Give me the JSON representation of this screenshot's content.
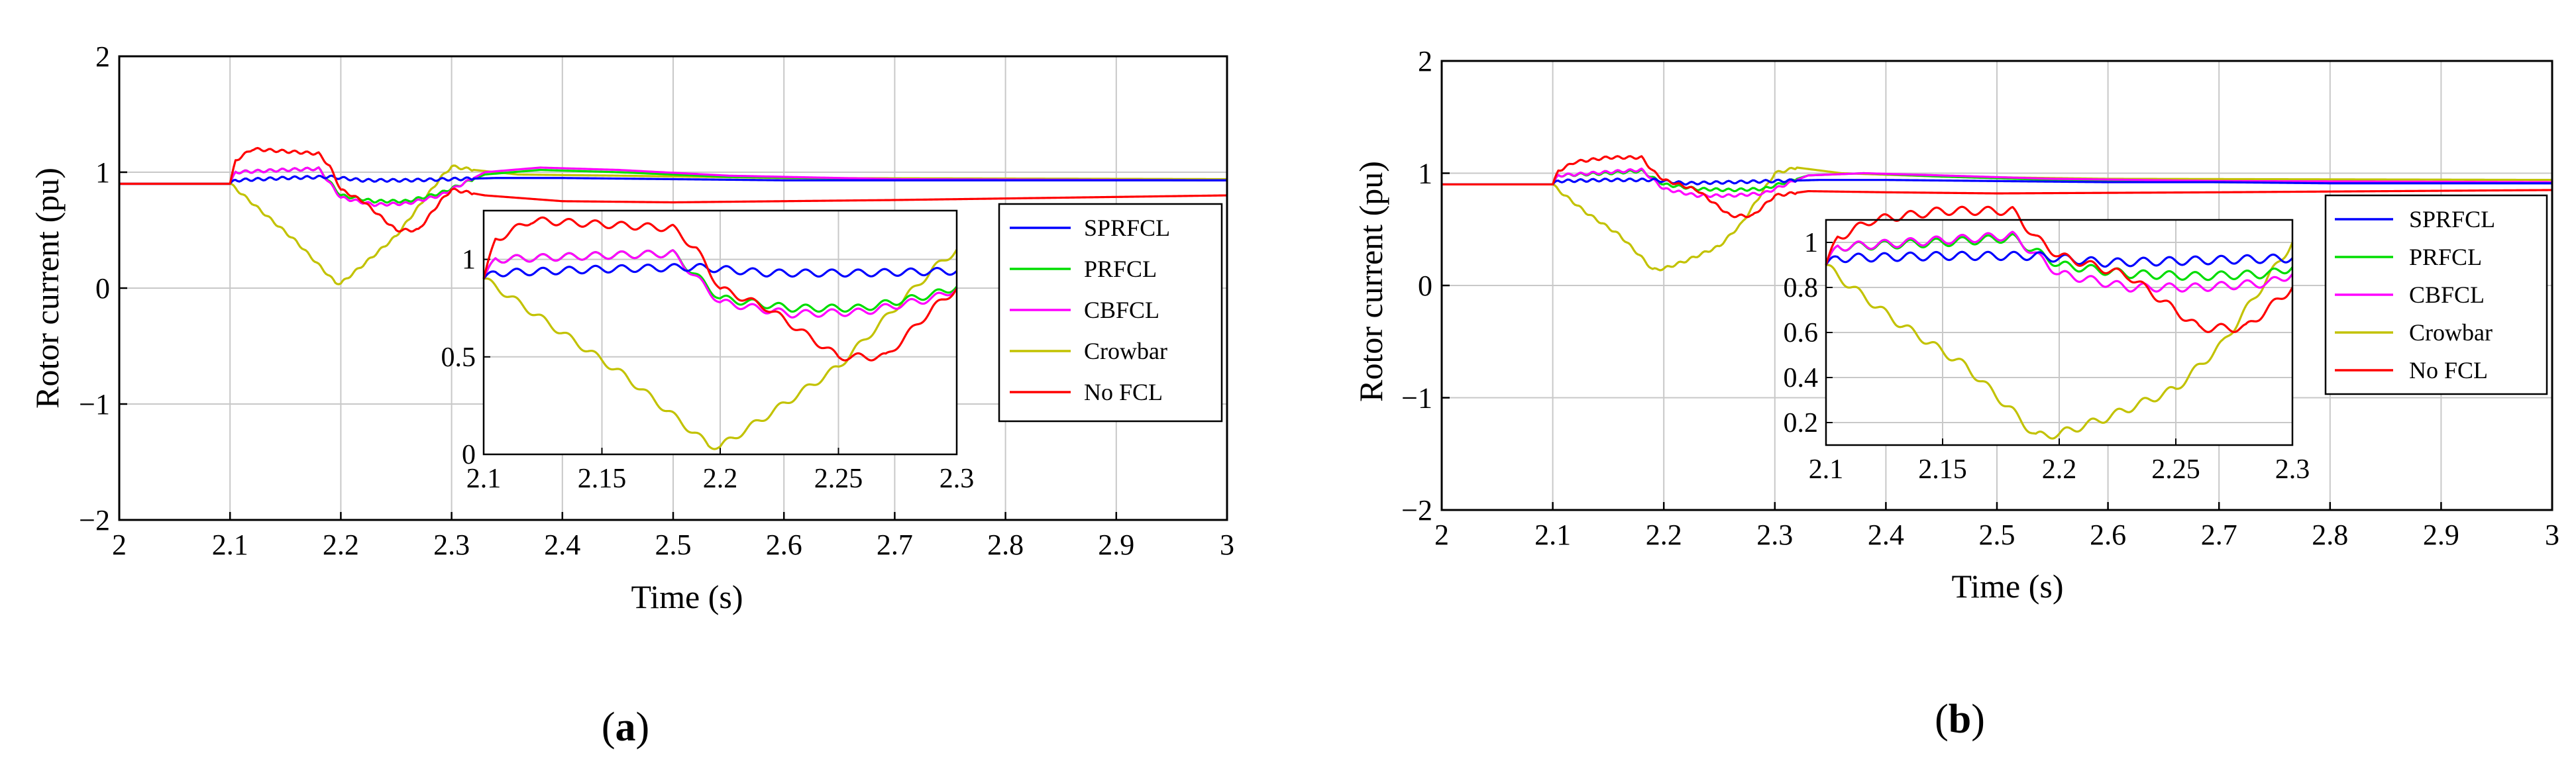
{
  "panels": [
    {
      "caption_prefix": "(",
      "caption_letter": "a",
      "caption_suffix": ")",
      "chart_data": {
        "type": "line",
        "title": "",
        "xlabel": "Time (s)",
        "ylabel": "Rotor current (pu)",
        "xlim": [
          2,
          3
        ],
        "ylim": [
          -2,
          2
        ],
        "xticks": [
          2,
          2.1,
          2.2,
          2.3,
          2.4,
          2.5,
          2.6,
          2.7,
          2.8,
          2.9,
          3
        ],
        "xtick_labels": [
          "2",
          "2.1",
          "2.2",
          "2.3",
          "2.4",
          "2.5",
          "2.6",
          "2.7",
          "2.8",
          "2.9",
          "3"
        ],
        "yticks": [
          -2,
          -1,
          0,
          1,
          2
        ],
        "ytick_labels": [
          "−2",
          "−1",
          "0",
          "1",
          "2"
        ],
        "grid": true,
        "legend_position": "right",
        "series": [
          {
            "name": "SPRFCL",
            "color": "#0000ff",
            "x": [
              2,
              2.1,
              2.105,
              2.15,
              2.19,
              2.22,
              2.26,
              2.3,
              2.34,
              2.4,
              2.5,
              2.6,
              2.7,
              2.8,
              3.0
            ],
            "y": [
              0.9,
              0.9,
              0.93,
              0.95,
              0.96,
              0.93,
              0.93,
              0.94,
              0.95,
              0.95,
              0.94,
              0.93,
              0.93,
              0.93,
              0.93
            ]
          },
          {
            "name": "PRFCL",
            "color": "#00dd00",
            "x": [
              2,
              2.1,
              2.105,
              2.15,
              2.18,
              2.2,
              2.23,
              2.26,
              2.29,
              2.33,
              2.38,
              2.45,
              2.55,
              2.7,
              3.0
            ],
            "y": [
              0.9,
              0.9,
              1.0,
              1.02,
              1.03,
              0.8,
              0.75,
              0.75,
              0.82,
              0.98,
              1.02,
              1.0,
              0.96,
              0.94,
              0.93
            ]
          },
          {
            "name": "CBFCL",
            "color": "#ff00ff",
            "x": [
              2,
              2.1,
              2.105,
              2.15,
              2.18,
              2.2,
              2.23,
              2.26,
              2.29,
              2.33,
              2.38,
              2.45,
              2.55,
              2.7,
              3.0
            ],
            "y": [
              0.9,
              0.9,
              1.0,
              1.02,
              1.03,
              0.78,
              0.72,
              0.73,
              0.8,
              1.0,
              1.04,
              1.02,
              0.97,
              0.94,
              0.93
            ]
          },
          {
            "name": "Crowbar",
            "color": "#c2c200",
            "x": [
              2,
              2.1,
              2.105,
              2.13,
              2.16,
              2.18,
              2.195,
              2.2,
              2.22,
              2.25,
              2.27,
              2.29,
              2.3,
              2.32,
              2.36,
              2.45,
              2.6,
              3.0
            ],
            "y": [
              0.9,
              0.9,
              0.86,
              0.65,
              0.4,
              0.2,
              0.05,
              0.04,
              0.2,
              0.45,
              0.7,
              0.95,
              1.05,
              1.02,
              0.98,
              0.97,
              0.95,
              0.94
            ]
          },
          {
            "name": "No FCL",
            "color": "#ff0000",
            "x": [
              2,
              2.1,
              2.105,
              2.12,
              2.15,
              2.18,
              2.19,
              2.2,
              2.22,
              2.25,
              2.27,
              2.29,
              2.3,
              2.33,
              2.4,
              2.5,
              2.7,
              3.0
            ],
            "y": [
              0.9,
              0.9,
              1.1,
              1.2,
              1.18,
              1.16,
              1.05,
              0.85,
              0.75,
              0.5,
              0.5,
              0.75,
              0.85,
              0.8,
              0.75,
              0.74,
              0.76,
              0.8
            ]
          }
        ],
        "inset": {
          "xlim": [
            2.1,
            2.3
          ],
          "ylim": [
            0,
            1.25
          ],
          "xticks": [
            2.1,
            2.15,
            2.2,
            2.25,
            2.3
          ],
          "xtick_labels": [
            "2.1",
            "2.15",
            "2.2",
            "2.25",
            "2.3"
          ],
          "yticks": [
            0,
            0.5,
            1
          ],
          "ytick_labels": [
            "0",
            "0.5",
            "1"
          ]
        }
      }
    },
    {
      "caption_prefix": "(",
      "caption_letter": "b",
      "caption_suffix": ")",
      "chart_data": {
        "type": "line",
        "title": "",
        "xlabel": "Time (s)",
        "ylabel": "Rotor current (pu)",
        "xlim": [
          2,
          3
        ],
        "ylim": [
          -2,
          2
        ],
        "xticks": [
          2,
          2.1,
          2.2,
          2.3,
          2.4,
          2.5,
          2.6,
          2.7,
          2.8,
          2.9,
          3
        ],
        "xtick_labels": [
          "2",
          "2.1",
          "2.2",
          "2.3",
          "2.4",
          "2.5",
          "2.6",
          "2.7",
          "2.8",
          "2.9",
          "3"
        ],
        "yticks": [
          -2,
          -1,
          0,
          1,
          2
        ],
        "ytick_labels": [
          "−2",
          "−1",
          "0",
          "1",
          "2"
        ],
        "grid": true,
        "legend_position": "right",
        "series": [
          {
            "name": "SPRFCL",
            "color": "#0000ff",
            "x": [
              2,
              2.1,
              2.105,
              2.15,
              2.19,
              2.22,
              2.26,
              2.3,
              2.34,
              2.4,
              2.5,
              2.6,
              2.7,
              2.8,
              3.0
            ],
            "y": [
              0.9,
              0.9,
              0.93,
              0.94,
              0.94,
              0.91,
              0.92,
              0.93,
              0.94,
              0.94,
              0.93,
              0.92,
              0.92,
              0.91,
              0.91
            ]
          },
          {
            "name": "PRFCL",
            "color": "#00dd00",
            "x": [
              2,
              2.1,
              2.105,
              2.15,
              2.18,
              2.2,
              2.23,
              2.26,
              2.29,
              2.33,
              2.38,
              2.45,
              2.55,
              2.7,
              3.0
            ],
            "y": [
              0.9,
              0.9,
              0.98,
              1.0,
              1.02,
              0.9,
              0.86,
              0.85,
              0.86,
              0.98,
              1.0,
              0.97,
              0.94,
              0.92,
              0.91
            ]
          },
          {
            "name": "CBFCL",
            "color": "#ff00ff",
            "x": [
              2,
              2.1,
              2.105,
              2.15,
              2.18,
              2.2,
              2.23,
              2.26,
              2.29,
              2.33,
              2.38,
              2.45,
              2.55,
              2.7,
              3.0
            ],
            "y": [
              0.9,
              0.9,
              0.98,
              1.01,
              1.03,
              0.86,
              0.8,
              0.8,
              0.82,
              0.98,
              1.0,
              0.98,
              0.95,
              0.93,
              0.92
            ]
          },
          {
            "name": "Crowbar",
            "color": "#c2c200",
            "x": [
              2,
              2.1,
              2.105,
              2.13,
              2.16,
              2.18,
              2.19,
              2.2,
              2.22,
              2.25,
              2.27,
              2.29,
              2.3,
              2.32,
              2.36,
              2.45,
              2.6,
              3.0
            ],
            "y": [
              0.9,
              0.9,
              0.85,
              0.65,
              0.45,
              0.25,
              0.14,
              0.15,
              0.22,
              0.35,
              0.55,
              0.85,
              1.0,
              1.05,
              1.0,
              0.97,
              0.95,
              0.94
            ]
          },
          {
            "name": "No FCL",
            "color": "#ff0000",
            "x": [
              2,
              2.1,
              2.105,
              2.12,
              2.15,
              2.18,
              2.19,
              2.2,
              2.23,
              2.26,
              2.28,
              2.3,
              2.33,
              2.4,
              2.5,
              2.7,
              3.0
            ],
            "y": [
              0.9,
              0.9,
              1.02,
              1.1,
              1.14,
              1.14,
              1.02,
              0.94,
              0.85,
              0.62,
              0.62,
              0.8,
              0.84,
              0.83,
              0.82,
              0.83,
              0.85
            ]
          }
        ],
        "inset": {
          "xlim": [
            2.1,
            2.3
          ],
          "ylim": [
            0.1,
            1.1
          ],
          "xticks": [
            2.1,
            2.15,
            2.2,
            2.25,
            2.3
          ],
          "xtick_labels": [
            "2.1",
            "2.15",
            "2.2",
            "2.25",
            "2.3"
          ],
          "yticks": [
            0.2,
            0.4,
            0.6,
            0.8,
            1
          ],
          "ytick_labels": [
            "0.2",
            "0.4",
            "0.6",
            "0.8",
            "1"
          ]
        }
      }
    }
  ]
}
